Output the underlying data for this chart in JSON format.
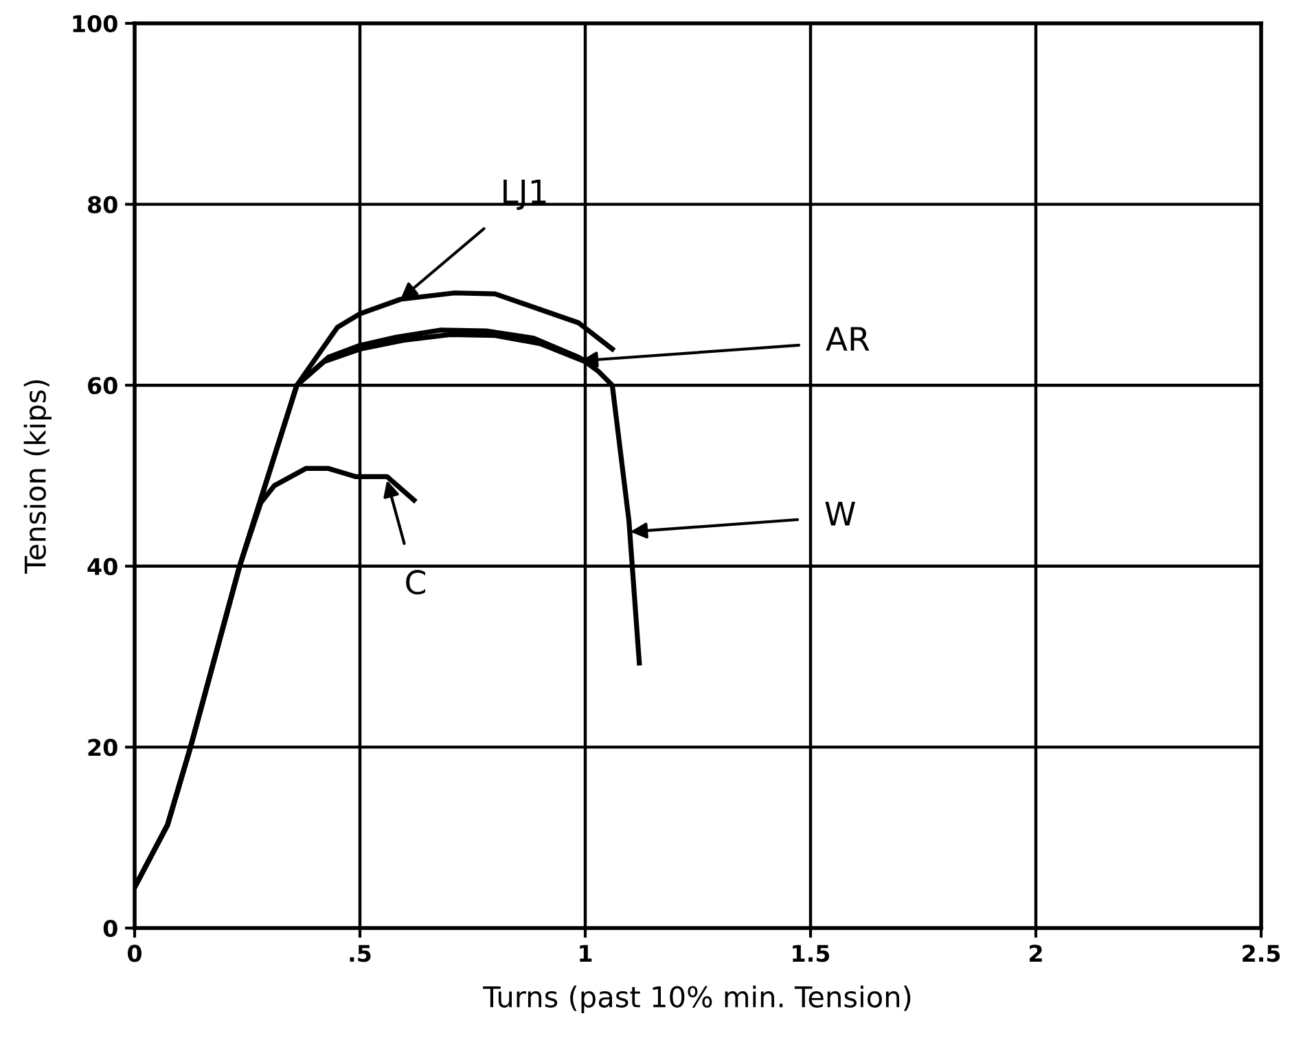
{
  "chart_data": {
    "type": "line",
    "xlabel": "Turns (past 10% min. Tension)",
    "ylabel": "Tension (kips)",
    "xlim": [
      0,
      2.5
    ],
    "ylim": [
      0,
      100
    ],
    "xticks": [
      0,
      {
        "value": 0.5,
        "label": ".5"
      },
      1,
      1.5,
      2,
      2.5
    ],
    "yticks": [
      0,
      20,
      40,
      60,
      80,
      100
    ],
    "grid": true,
    "marker": "none",
    "line_style": "solid",
    "series": [
      {
        "color": "#000000",
        "x": [
          0,
          0.073,
          0.124,
          0.233,
          0.36,
          0.45,
          0.5,
          0.59,
          0.71,
          0.8,
          0.985,
          1.06
        ],
        "values": [
          4.5,
          11.4,
          20,
          40,
          60,
          66.4,
          67.9,
          69.5,
          70.2,
          70.1,
          66.9,
          64
        ]
      },
      {
        "color": "#000000",
        "x": [
          0,
          0.073,
          0.124,
          0.233,
          0.36,
          0.43,
          0.5,
          0.58,
          0.68,
          0.78,
          0.885,
          0.985,
          1.015
        ],
        "values": [
          4.5,
          11.4,
          20,
          40,
          60,
          63.1,
          64.4,
          65.3,
          66.1,
          66,
          65.2,
          63.1,
          62.3
        ]
      },
      {
        "color": "#000000",
        "x": [
          0,
          0.073,
          0.124,
          0.233,
          0.36,
          0.42,
          0.5,
          0.6,
          0.7,
          0.8,
          0.9,
          1.0,
          1.03,
          1.06,
          1.097,
          1.12
        ],
        "values": [
          4.5,
          11.4,
          20,
          40,
          60,
          62.6,
          64,
          65,
          65.6,
          65.5,
          64.6,
          62.6,
          61.5,
          60,
          45,
          29.3
        ]
      },
      {
        "color": "#000000",
        "x": [
          0,
          0.073,
          0.124,
          0.233,
          0.28,
          0.31,
          0.38,
          0.43,
          0.49,
          0.56,
          0.62
        ],
        "values": [
          4.5,
          11.4,
          20,
          40,
          47,
          48.9,
          50.8,
          50.8,
          49.9,
          49.9,
          47.3
        ]
      }
    ],
    "annotations": [
      {
        "text": "LJ1",
        "x": 0.59,
        "y": 69.5
      },
      {
        "text": "AR",
        "x": 0.99,
        "y": 62.7
      },
      {
        "text": "W",
        "x": 1.1,
        "y": 43.8
      },
      {
        "text": "C",
        "x": 0.56,
        "y": 49.5
      }
    ]
  }
}
